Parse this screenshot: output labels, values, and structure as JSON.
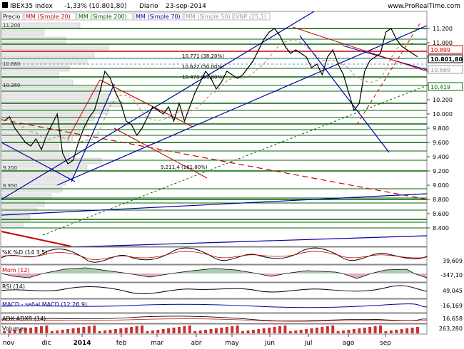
{
  "header": {
    "symbol": "IBEX35 Index",
    "change": "-1,33% (10.801,80)",
    "period": "Diario",
    "date": "23-sep-2014",
    "site": "www.ProRealTime.com"
  },
  "legend": [
    {
      "label": "Precio",
      "color": "#000000"
    },
    {
      "label": "MM (Simple 20)",
      "color": "#cc0000"
    },
    {
      "label": "MM (Simple 200)",
      "color": "#006600"
    },
    {
      "label": "MM (Simple 70)",
      "color": "#000099"
    },
    {
      "label": "MM (Simple 50)",
      "color": "#999999"
    },
    {
      "label": "VNP (25,1)",
      "color": "#999999"
    }
  ],
  "chart_data": {
    "type": "line",
    "title": "IBEX35 Index",
    "x": [
      "nov",
      "dic",
      "2014",
      "feb",
      "mar",
      "abr",
      "may",
      "jun",
      "jul",
      "ago",
      "sep"
    ],
    "ylim": [
      8200,
      11400
    ],
    "y_ticks": [
      "11.200",
      "11.000",
      "10.800",
      "10.600",
      "10.400",
      "10.200",
      "10.000",
      "9.800",
      "9.600",
      "9.400",
      "9.200",
      "9.000",
      "8.800",
      "8.600",
      "8.400"
    ],
    "y_tick_values": [
      11200,
      11000,
      10800,
      10600,
      10400,
      10200,
      10000,
      9800,
      9600,
      9400,
      9200,
      9000,
      8800,
      8600,
      8400
    ],
    "price_labels": [
      {
        "text": "10.899",
        "value": 10899,
        "color": "#cc0000"
      },
      {
        "text": "10.801,80",
        "value": 10801.8,
        "color": "#000000"
      },
      {
        "text": "10.669",
        "value": 10669,
        "color": "#999999"
      },
      {
        "text": "10.419",
        "value": 10419,
        "color": "#006600"
      }
    ],
    "volume_profile_labels": [
      {
        "text": "11.200",
        "value": 11200
      },
      {
        "text": "10.660",
        "value": 10660
      },
      {
        "text": "10.360",
        "value": 10360
      },
      {
        "text": "9.200",
        "value": 9200
      },
      {
        "text": "8.950",
        "value": 8950
      }
    ],
    "fib_labels": [
      {
        "text": "10.771 (38,20%)",
        "value": 10771
      },
      {
        "text": "10.622 (50,00%)",
        "value": 10622
      },
      {
        "text": "10.473 (61,80%)",
        "value": 10473
      },
      {
        "text": "9.211,4 (161,80%)",
        "value": 9211
      }
    ],
    "horizontal_levels": [
      11200,
      11050,
      10980,
      10880,
      10780,
      10640,
      10520,
      10400,
      10320,
      10150,
      10050,
      9950,
      9860,
      9780,
      9700,
      9600,
      9480,
      9350,
      9200,
      8950,
      8820,
      8800,
      8750,
      8650,
      8520,
      8480,
      8400
    ],
    "close_values": [
      9900,
      9960,
      9800,
      9700,
      9600,
      9550,
      9650,
      9500,
      9700,
      9850,
      10000,
      9450,
      9300,
      9350,
      9600,
      9800,
      9950,
      10050,
      10300,
      10600,
      10500,
      10300,
      10150,
      9900,
      9850,
      9700,
      9800,
      9950,
      10100,
      10050,
      10000,
      10100,
      9900,
      10150,
      9900,
      10100,
      10300,
      10450,
      10600,
      10500,
      10350,
      10450,
      10600,
      10550,
      10500,
      10550,
      10650,
      10750,
      10900,
      11050,
      11150,
      11200,
      11100,
      10950,
      10850,
      10900,
      10850,
      10800,
      10650,
      10700,
      10550,
      10800,
      10900,
      10700,
      10550,
      10300,
      10050,
      10150,
      10600,
      10750,
      10800,
      10850,
      11150,
      11200,
      11050,
      10950,
      10900,
      10850,
      10801.8
    ]
  },
  "indicators": [
    {
      "label": "%K  %D (14 3 5)",
      "value": "39,609"
    },
    {
      "label": "Mom (12)",
      "value": "-347,10"
    },
    {
      "label": "RSI (14)",
      "value": "49,045"
    },
    {
      "label": "MACD - señal  MACD (12 26 9)",
      "value": "-16,169"
    },
    {
      "label": "ADX ADXR (14)",
      "value": "16,658"
    },
    {
      "label": "Volumen",
      "value": "263,280"
    }
  ]
}
